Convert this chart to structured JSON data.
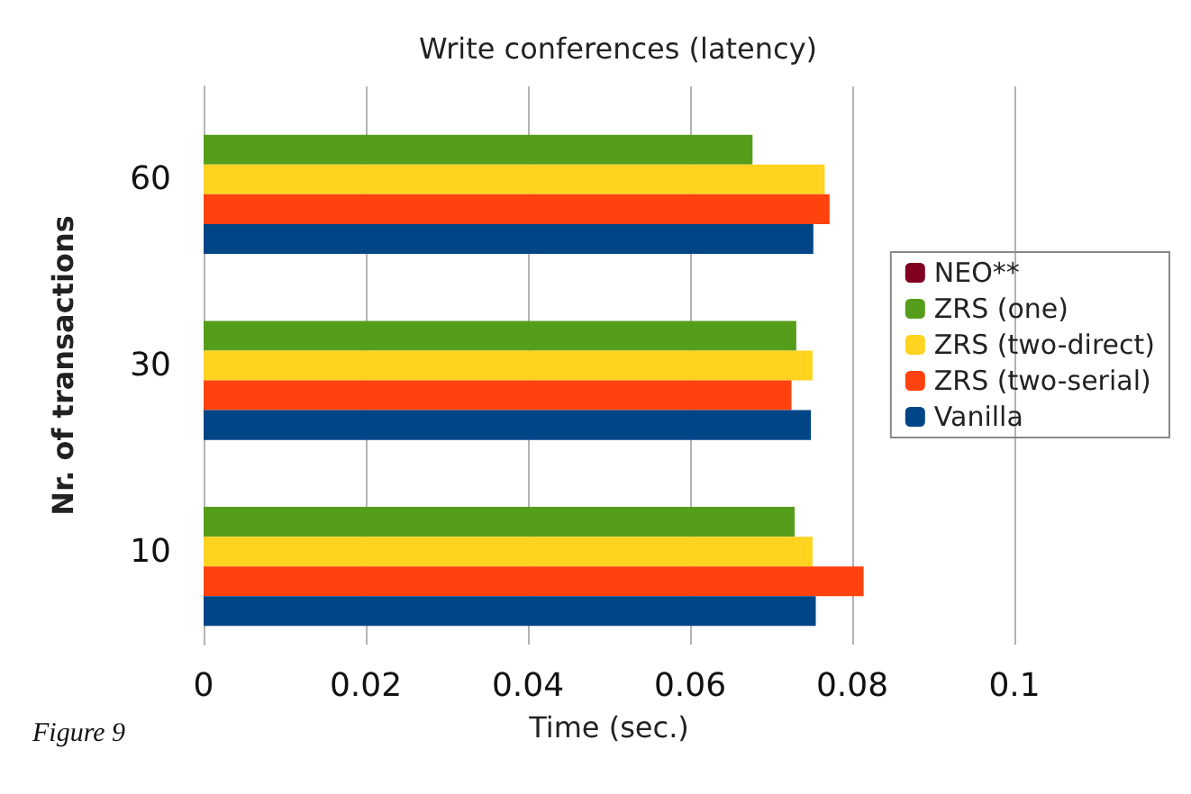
{
  "chart_data": {
    "type": "bar",
    "orientation": "horizontal",
    "title": "Write conferences (latency)",
    "xlabel": "Time (sec.)",
    "ylabel": "Nr. of transactions",
    "categories": [
      "60",
      "30",
      "10"
    ],
    "series": [
      {
        "name": "NEO**",
        "color": "#7f0020",
        "values": [
          null,
          null,
          null
        ]
      },
      {
        "name": "ZRS (one)",
        "color": "#579d1c",
        "values": [
          0.0677,
          0.0731,
          0.0729
        ]
      },
      {
        "name": "ZRS (two-direct)",
        "color": "#ffd320",
        "values": [
          0.0766,
          0.0751,
          0.0751
        ]
      },
      {
        "name": "ZRS (two-serial)",
        "color": "#ff420e",
        "values": [
          0.0772,
          0.0725,
          0.0814
        ]
      },
      {
        "name": "Vanilla",
        "color": "#004586",
        "values": [
          0.0752,
          0.0749,
          0.0755
        ]
      }
    ],
    "xlim": [
      0,
      0.1
    ],
    "xticks": [
      0,
      0.02,
      0.04,
      0.06,
      0.08,
      0.1
    ],
    "grid": "x",
    "legend": "right",
    "annotations": [
      "Figure 9"
    ]
  }
}
